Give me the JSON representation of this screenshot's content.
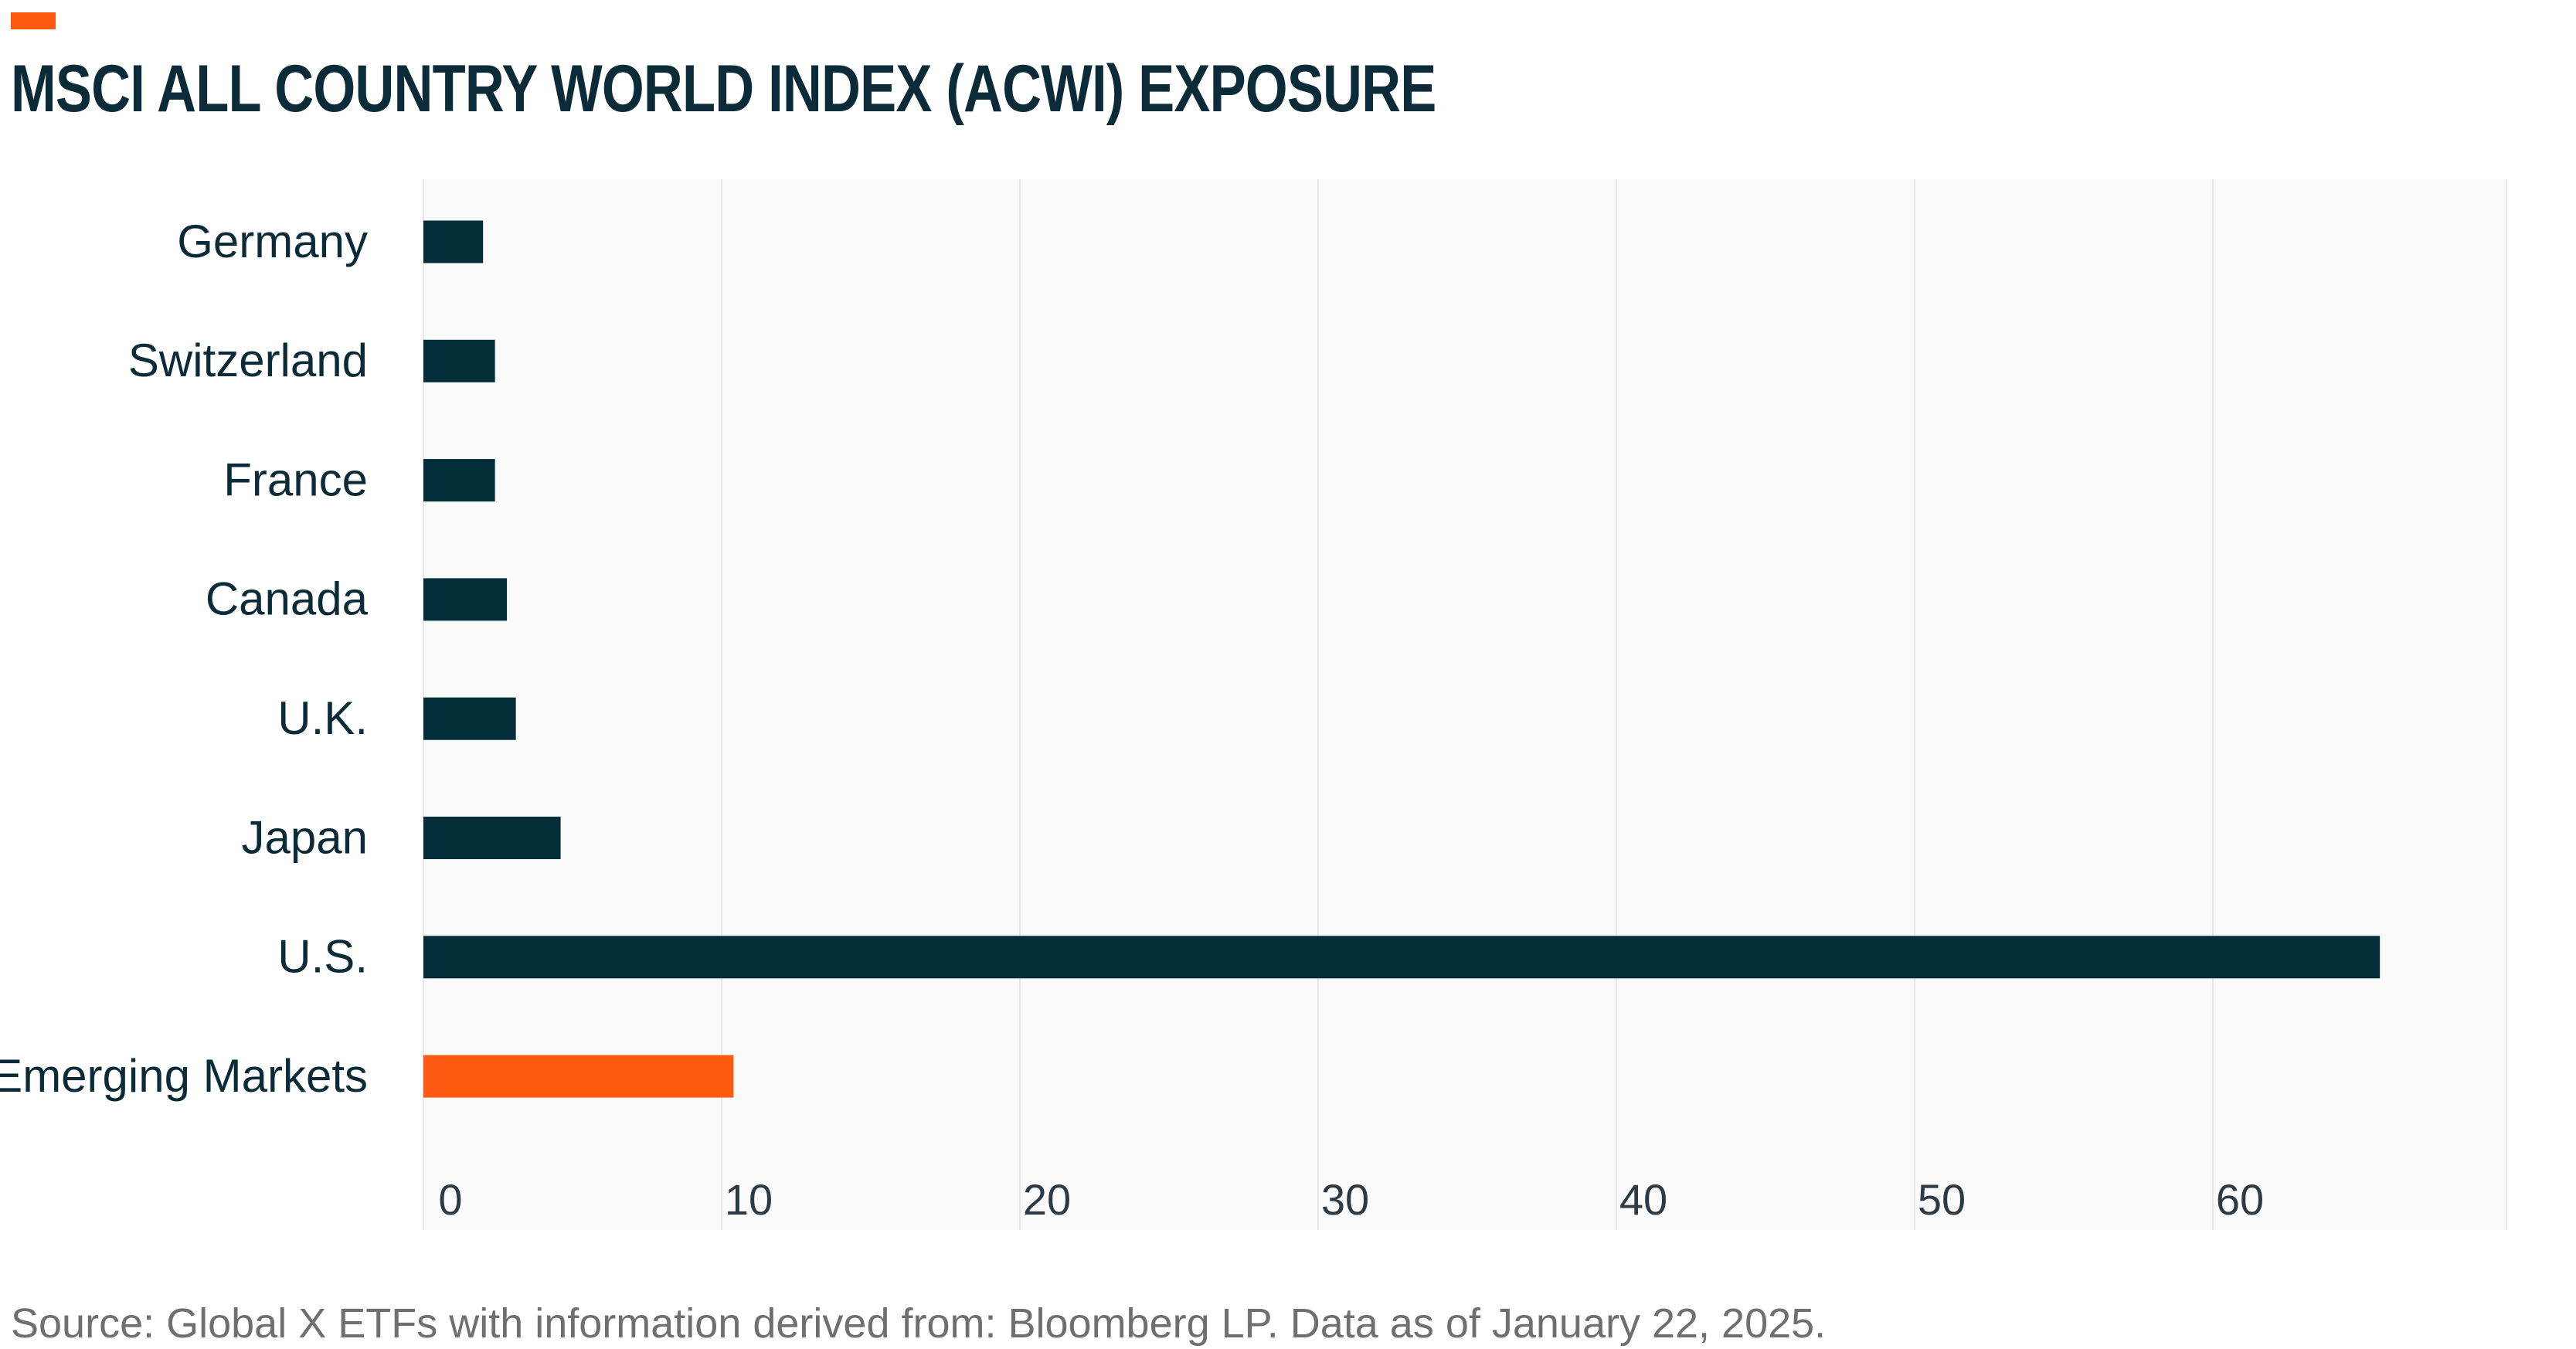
{
  "title": "MSCI ALL COUNTRY WORLD INDEX (ACWI) EXPOSURE",
  "source": "Source: Global X ETFs with information derived from: Bloomberg LP. Data as of January 22, 2025.",
  "colors": {
    "accent": "#ff5a12",
    "bar_primary": "#032d38",
    "bar_highlight": "#ff5a12",
    "title": "#0b2b38",
    "plot_background": "#fafafa",
    "grid": "#e8e8e8",
    "source_text": "#6f6f6f"
  },
  "chart_data": {
    "type": "bar",
    "orientation": "horizontal",
    "categories": [
      "Germany",
      "Switzerland",
      "France",
      "Canada",
      "U.K.",
      "Japan",
      "U.S.",
      "Emerging Markets"
    ],
    "values": [
      2.0,
      2.4,
      2.4,
      2.8,
      3.1,
      4.6,
      65.6,
      10.4
    ],
    "highlight": [
      "Emerging Markets"
    ],
    "xlim": [
      0,
      70
    ],
    "xticks": [
      "0",
      "10",
      "20",
      "30",
      "40",
      "50",
      "60"
    ],
    "xlabel": "",
    "ylabel": "",
    "grid": "vertical",
    "legend": "none"
  }
}
